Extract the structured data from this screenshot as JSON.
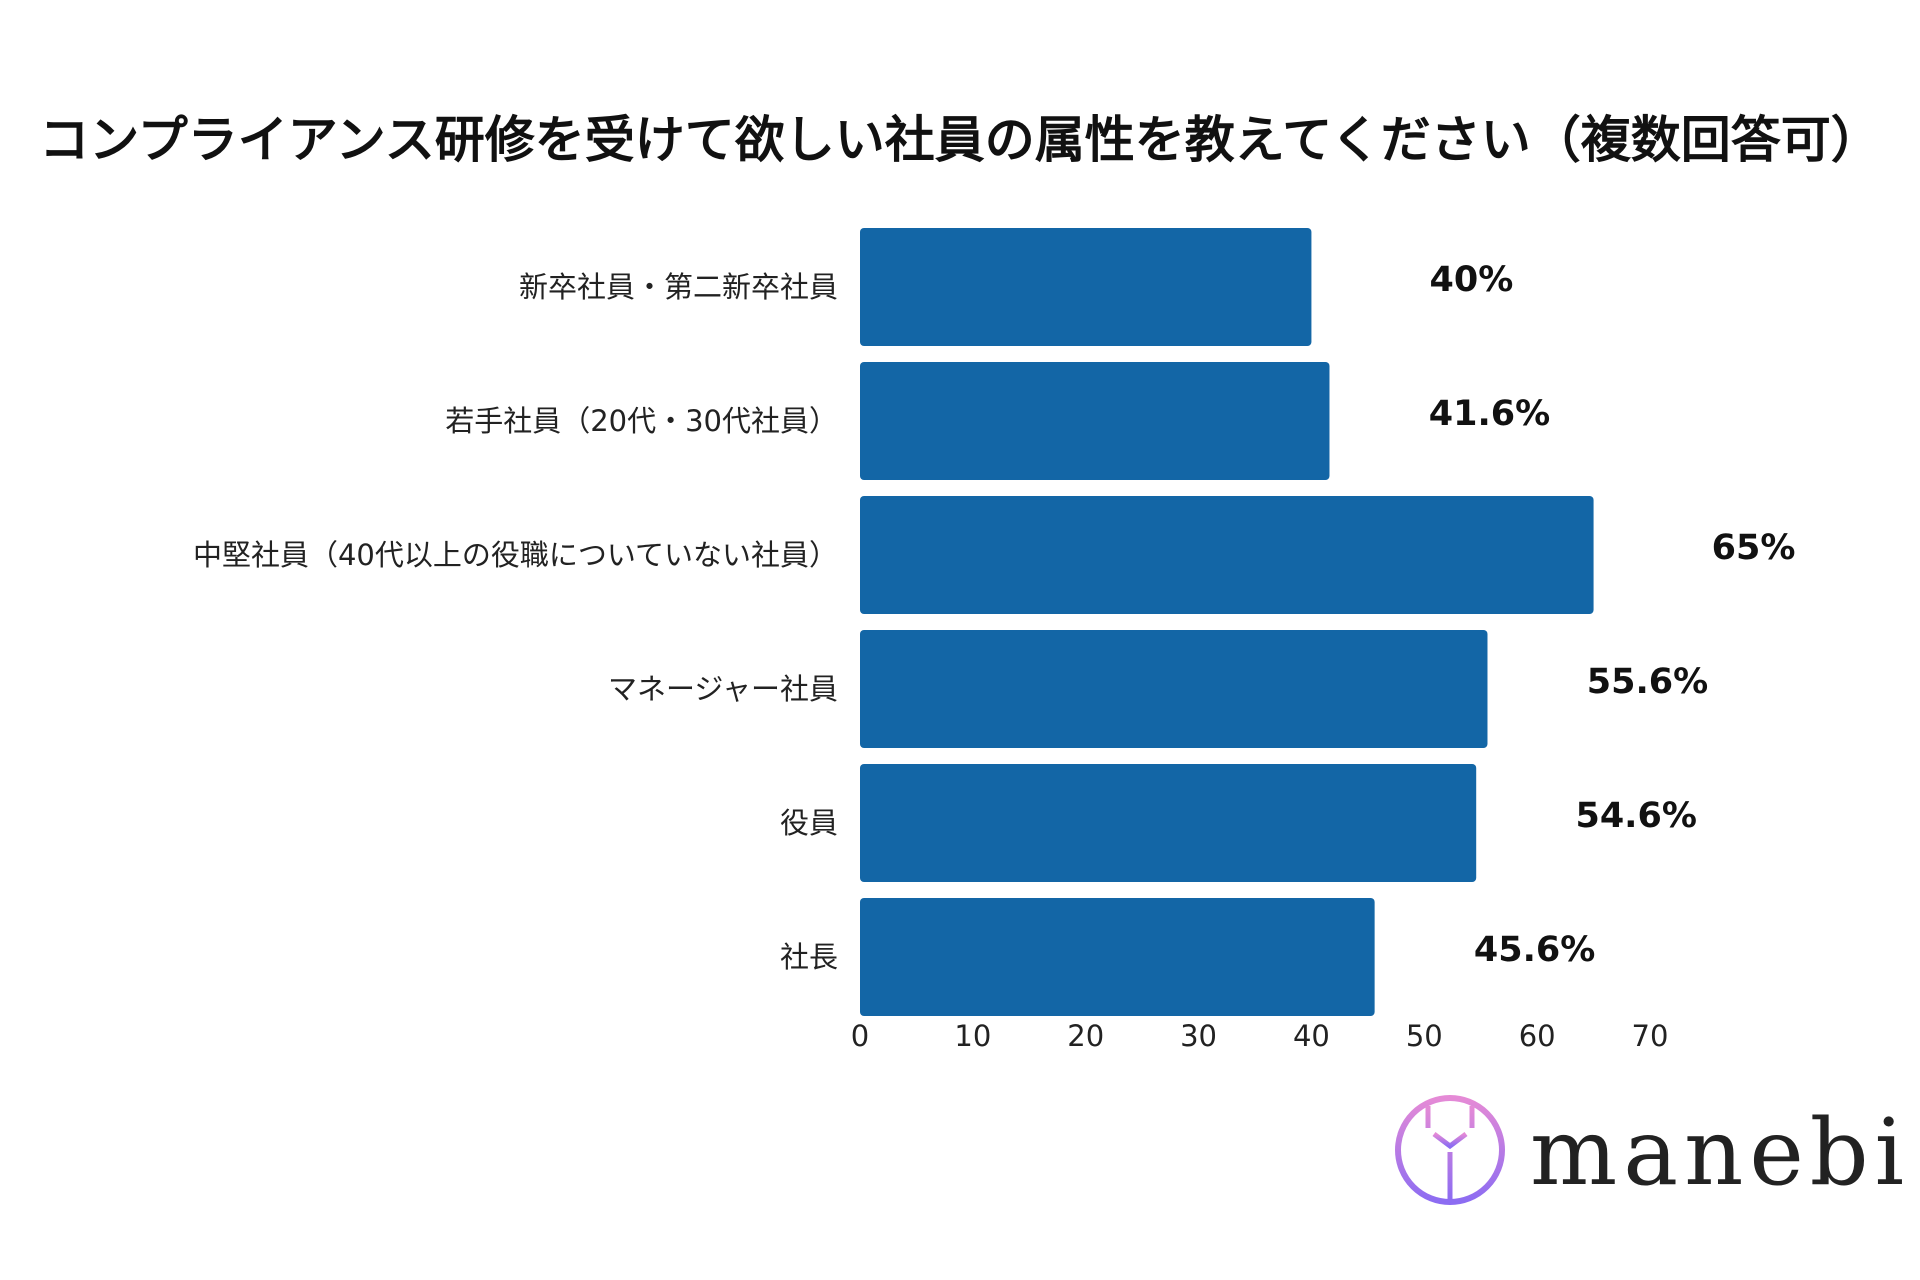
{
  "chart_data": {
    "type": "bar",
    "orientation": "horizontal",
    "title": "コンプライアンス研修を受けて欲しい社員の属性を教えてください（複数回答可）",
    "categories": [
      "新卒社員・第二新卒社員",
      "若手社員（20代・30代社員）",
      "中堅社員（40代以上の役職についていない社員）",
      "マネージャー社員",
      "役員",
      "社長"
    ],
    "values": [
      40,
      41.6,
      65,
      55.6,
      54.6,
      45.6
    ],
    "value_labels": [
      "40%",
      "41.6%",
      "65%",
      "55.6%",
      "54.6%",
      "45.6%"
    ],
    "xlim": [
      0,
      70
    ],
    "xticks": [
      0,
      10,
      20,
      30,
      40,
      50,
      60,
      70
    ],
    "xtick_labels": [
      "0",
      "10",
      "20",
      "30",
      "40",
      "50",
      "60",
      "70"
    ],
    "bar_color": "#1366a6",
    "grid": false,
    "legend": "none"
  },
  "logo": {
    "text": "manebi",
    "icon": "manebi-logo-icon",
    "colors": [
      "#e58ad6",
      "#8c6cf2"
    ]
  }
}
